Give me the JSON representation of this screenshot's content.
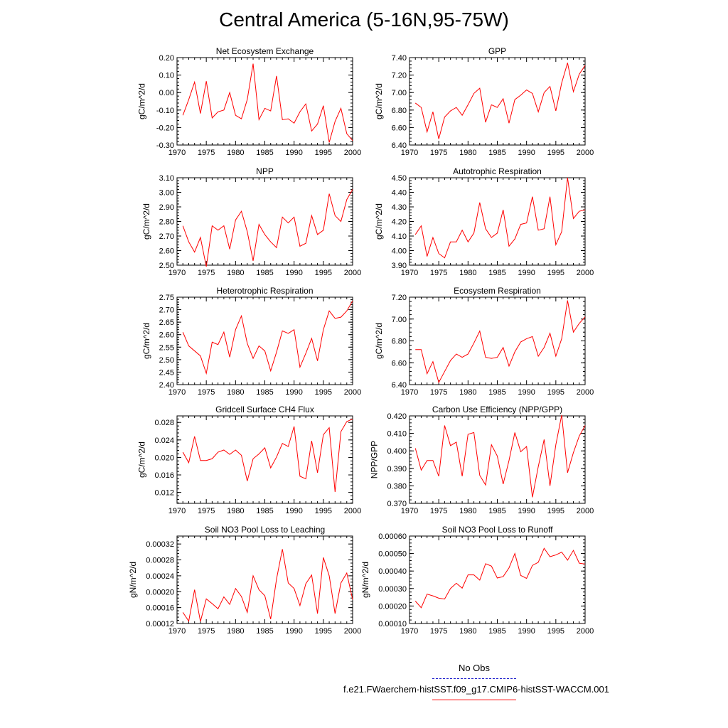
{
  "title": "Central America (5-16N,95-75W)",
  "legend": {
    "obs_label": "No Obs",
    "case_label": "f.e21.FWaerchem-histSST.f09_g17.CMIP6-histSST-WACCM.001",
    "obs_color": "#2222cc",
    "case_color": "#ff0000"
  },
  "chart_data": [
    {
      "type": "line",
      "title": "Net Ecosystem Exchange",
      "ylabel": "gC/m^2/d",
      "xlim": [
        1970,
        2000
      ],
      "ylim": [
        -0.3,
        0.2
      ],
      "xticks": [
        "1970",
        "1975",
        "1980",
        "1985",
        "1990",
        "1995",
        "2000"
      ],
      "yticks": [
        "-0.30",
        "-0.20",
        "-0.10",
        "0.00",
        "0.10",
        "0.20"
      ],
      "x": [
        1971,
        1972,
        1973,
        1974,
        1975,
        1976,
        1977,
        1978,
        1979,
        1980,
        1981,
        1982,
        1983,
        1984,
        1985,
        1986,
        1987,
        1988,
        1989,
        1990,
        1991,
        1992,
        1993,
        1994,
        1995,
        1996,
        1997,
        1998,
        1999,
        2000
      ],
      "series": [
        {
          "values": [
            -0.13,
            -0.04,
            0.06,
            -0.12,
            0.065,
            -0.145,
            -0.11,
            -0.1,
            0.0,
            -0.13,
            -0.15,
            -0.04,
            0.165,
            -0.155,
            -0.09,
            -0.105,
            0.095,
            -0.155,
            -0.15,
            -0.175,
            -0.11,
            -0.065,
            -0.22,
            -0.18,
            -0.075,
            -0.285,
            -0.165,
            -0.09,
            -0.235,
            -0.275
          ]
        }
      ]
    },
    {
      "type": "line",
      "title": "GPP",
      "ylabel": "gC/m^2/d",
      "xlim": [
        1970,
        2000
      ],
      "ylim": [
        6.4,
        7.4
      ],
      "xticks": [
        "1970",
        "1975",
        "1980",
        "1985",
        "1990",
        "1995",
        "2000"
      ],
      "yticks": [
        "6.40",
        "6.60",
        "6.80",
        "7.00",
        "7.20",
        "7.40"
      ],
      "x": [
        1971,
        1972,
        1973,
        1974,
        1975,
        1976,
        1977,
        1978,
        1979,
        1980,
        1981,
        1982,
        1983,
        1984,
        1985,
        1986,
        1987,
        1988,
        1989,
        1990,
        1991,
        1992,
        1993,
        1994,
        1995,
        1996,
        1997,
        1998,
        1999,
        2000
      ],
      "series": [
        {
          "values": [
            6.88,
            6.83,
            6.55,
            6.78,
            6.47,
            6.72,
            6.79,
            6.83,
            6.74,
            6.86,
            6.99,
            7.05,
            6.66,
            6.86,
            6.83,
            6.93,
            6.65,
            6.92,
            6.97,
            7.03,
            6.99,
            6.78,
            7.0,
            7.07,
            6.79,
            7.11,
            7.34,
            7.01,
            7.21,
            7.31
          ]
        }
      ]
    },
    {
      "type": "line",
      "title": "NPP",
      "ylabel": "gC/m^2/d",
      "xlim": [
        1970,
        2000
      ],
      "ylim": [
        2.5,
        3.1
      ],
      "xticks": [
        "1970",
        "1975",
        "1980",
        "1985",
        "1990",
        "1995",
        "2000"
      ],
      "yticks": [
        "2.50",
        "2.60",
        "2.70",
        "2.80",
        "2.90",
        "3.00",
        "3.10"
      ],
      "x": [
        1971,
        1972,
        1973,
        1974,
        1975,
        1976,
        1977,
        1978,
        1979,
        1980,
        1981,
        1982,
        1983,
        1984,
        1985,
        1986,
        1987,
        1988,
        1989,
        1990,
        1991,
        1992,
        1993,
        1994,
        1995,
        1996,
        1997,
        1998,
        1999,
        2000
      ],
      "series": [
        {
          "values": [
            2.77,
            2.66,
            2.59,
            2.69,
            2.49,
            2.77,
            2.74,
            2.77,
            2.61,
            2.81,
            2.87,
            2.73,
            2.53,
            2.78,
            2.71,
            2.66,
            2.62,
            2.83,
            2.79,
            2.83,
            2.63,
            2.65,
            2.84,
            2.71,
            2.74,
            2.99,
            2.84,
            2.8,
            2.95,
            3.02
          ]
        }
      ]
    },
    {
      "type": "line",
      "title": "Autotrophic Respiration",
      "ylabel": "gC/m^2/d",
      "xlim": [
        1970,
        2000
      ],
      "ylim": [
        3.9,
        4.5
      ],
      "xticks": [
        "1970",
        "1975",
        "1980",
        "1985",
        "1990",
        "1995",
        "2000"
      ],
      "yticks": [
        "3.90",
        "4.00",
        "4.10",
        "4.20",
        "4.30",
        "4.40",
        "4.50"
      ],
      "x": [
        1971,
        1972,
        1973,
        1974,
        1975,
        1976,
        1977,
        1978,
        1979,
        1980,
        1981,
        1982,
        1983,
        1984,
        1985,
        1986,
        1987,
        1988,
        1989,
        1990,
        1991,
        1992,
        1993,
        1994,
        1995,
        1996,
        1997,
        1998,
        1999,
        2000
      ],
      "series": [
        {
          "values": [
            4.11,
            4.17,
            3.96,
            4.09,
            3.98,
            3.95,
            4.06,
            4.06,
            4.14,
            4.06,
            4.12,
            4.33,
            4.15,
            4.09,
            4.12,
            4.28,
            4.03,
            4.08,
            4.18,
            4.19,
            4.37,
            4.14,
            4.15,
            4.37,
            4.04,
            4.13,
            4.5,
            4.22,
            4.27,
            4.28
          ]
        }
      ]
    },
    {
      "type": "line",
      "title": "Heterotrophic Respiration",
      "ylabel": "gC/m^2/d",
      "xlim": [
        1970,
        2000
      ],
      "ylim": [
        2.4,
        2.75
      ],
      "xticks": [
        "1970",
        "1975",
        "1980",
        "1985",
        "1990",
        "1995",
        "2000"
      ],
      "yticks": [
        "2.40",
        "2.45",
        "2.50",
        "2.55",
        "2.60",
        "2.65",
        "2.70",
        "2.75"
      ],
      "x": [
        1971,
        1972,
        1973,
        1974,
        1975,
        1976,
        1977,
        1978,
        1979,
        1980,
        1981,
        1982,
        1983,
        1984,
        1985,
        1986,
        1987,
        1988,
        1989,
        1990,
        1991,
        1992,
        1993,
        1994,
        1995,
        1996,
        1997,
        1998,
        1999,
        2000
      ],
      "series": [
        {
          "values": [
            2.61,
            2.555,
            2.535,
            2.515,
            2.445,
            2.57,
            2.56,
            2.61,
            2.51,
            2.62,
            2.675,
            2.565,
            2.505,
            2.555,
            2.535,
            2.455,
            2.53,
            2.615,
            2.605,
            2.62,
            2.47,
            2.525,
            2.585,
            2.495,
            2.62,
            2.695,
            2.665,
            2.67,
            2.695,
            2.735
          ]
        }
      ]
    },
    {
      "type": "line",
      "title": "Ecosystem Respiration",
      "ylabel": "gC/m^2/d",
      "xlim": [
        1970,
        2000
      ],
      "ylim": [
        6.4,
        7.2
      ],
      "xticks": [
        "1970",
        "1975",
        "1980",
        "1985",
        "1990",
        "1995",
        "2000"
      ],
      "yticks": [
        "6.40",
        "6.60",
        "6.80",
        "7.00",
        "7.20"
      ],
      "x": [
        1971,
        1972,
        1973,
        1974,
        1975,
        1976,
        1977,
        1978,
        1979,
        1980,
        1981,
        1982,
        1983,
        1984,
        1985,
        1986,
        1987,
        1988,
        1989,
        1990,
        1991,
        1992,
        1993,
        1994,
        1995,
        1996,
        1997,
        1998,
        1999,
        2000
      ],
      "series": [
        {
          "values": [
            6.72,
            6.72,
            6.5,
            6.61,
            6.42,
            6.52,
            6.62,
            6.68,
            6.65,
            6.68,
            6.78,
            6.89,
            6.65,
            6.64,
            6.65,
            6.74,
            6.57,
            6.7,
            6.79,
            6.82,
            6.84,
            6.66,
            6.74,
            6.87,
            6.66,
            6.82,
            7.17,
            6.88,
            6.96,
            7.02
          ]
        }
      ]
    },
    {
      "type": "line",
      "title": "Gridcell Surface CH4 Flux",
      "ylabel": "gC/m^2/d",
      "xlim": [
        1970,
        2000
      ],
      "ylim": [
        0.0095,
        0.0295
      ],
      "xticks": [
        "1970",
        "1975",
        "1980",
        "1985",
        "1990",
        "1995",
        "2000"
      ],
      "yticks": [
        "0.012",
        "0.016",
        "0.020",
        "0.024",
        "0.028"
      ],
      "ytick_values": [
        0.012,
        0.016,
        0.02,
        0.024,
        0.028
      ],
      "x": [
        1971,
        1972,
        1973,
        1974,
        1975,
        1976,
        1977,
        1978,
        1979,
        1980,
        1981,
        1982,
        1983,
        1984,
        1985,
        1986,
        1987,
        1988,
        1989,
        1990,
        1991,
        1992,
        1993,
        1994,
        1995,
        1996,
        1997,
        1998,
        1999,
        2000
      ],
      "series": [
        {
          "values": [
            0.0212,
            0.0188,
            0.0248,
            0.0193,
            0.0193,
            0.0197,
            0.0212,
            0.0217,
            0.0207,
            0.0217,
            0.0205,
            0.0146,
            0.0197,
            0.0208,
            0.0222,
            0.0176,
            0.0201,
            0.0232,
            0.0225,
            0.0271,
            0.0157,
            0.0151,
            0.0238,
            0.0165,
            0.0252,
            0.0268,
            0.0121,
            0.0259,
            0.0282,
            0.0288
          ]
        }
      ]
    },
    {
      "type": "line",
      "title": "Carbon Use Efficiency (NPP/GPP)",
      "ylabel": "NPP/GPP",
      "xlim": [
        1970,
        2000
      ],
      "ylim": [
        0.37,
        0.42
      ],
      "xticks": [
        "1970",
        "1975",
        "1980",
        "1985",
        "1990",
        "1995",
        "2000"
      ],
      "yticks": [
        "0.370",
        "0.380",
        "0.390",
        "0.400",
        "0.410",
        "0.420"
      ],
      "x": [
        1971,
        1972,
        1973,
        1974,
        1975,
        1976,
        1977,
        1978,
        1979,
        1980,
        1981,
        1982,
        1983,
        1984,
        1985,
        1986,
        1987,
        1988,
        1989,
        1990,
        1991,
        1992,
        1993,
        1994,
        1995,
        1996,
        1997,
        1998,
        1999,
        2000
      ],
      "series": [
        {
          "values": [
            0.4015,
            0.389,
            0.3945,
            0.3945,
            0.3855,
            0.4145,
            0.403,
            0.405,
            0.3855,
            0.4095,
            0.4105,
            0.386,
            0.3805,
            0.4035,
            0.397,
            0.381,
            0.3945,
            0.4105,
            0.3995,
            0.4025,
            0.3735,
            0.391,
            0.4065,
            0.38,
            0.4035,
            0.4205,
            0.3875,
            0.399,
            0.4085,
            0.4145
          ]
        }
      ]
    },
    {
      "type": "line",
      "title": "Soil NO3 Pool Loss to Leaching",
      "ylabel": "gN/m^2/d",
      "xlim": [
        1970,
        2000
      ],
      "ylim": [
        0.00012,
        0.00034
      ],
      "xticks": [
        "1970",
        "1975",
        "1980",
        "1985",
        "1990",
        "1995",
        "2000"
      ],
      "yticks": [
        "0.00012",
        "0.00016",
        "0.00020",
        "0.00024",
        "0.00028",
        "0.00032"
      ],
      "ytick_values": [
        0.00012,
        0.00016,
        0.0002,
        0.00024,
        0.00028,
        0.00032
      ],
      "x": [
        1971,
        1972,
        1973,
        1974,
        1975,
        1976,
        1977,
        1978,
        1979,
        1980,
        1981,
        1982,
        1983,
        1984,
        1985,
        1986,
        1987,
        1988,
        1989,
        1990,
        1991,
        1992,
        1993,
        1994,
        1995,
        1996,
        1997,
        1998,
        1999,
        2000
      ],
      "series": [
        {
          "values": [
            0.000148,
            0.000126,
            0.000205,
            0.000125,
            0.000182,
            0.00017,
            0.000157,
            0.000187,
            0.000168,
            0.000208,
            0.000188,
            0.000148,
            0.00024,
            0.000205,
            0.00019,
            0.000131,
            0.000232,
            0.000307,
            0.000222,
            0.000208,
            0.000165,
            0.00022,
            0.000242,
            0.000145,
            0.000286,
            0.00024,
            0.000145,
            0.000222,
            0.000247,
            0.00018
          ]
        }
      ]
    },
    {
      "type": "line",
      "title": "Soil NO3 Pool Loss to Runoff",
      "ylabel": "gN/m^2/d",
      "xlim": [
        1970,
        2000
      ],
      "ylim": [
        0.0001,
        0.0006
      ],
      "xticks": [
        "1970",
        "1975",
        "1980",
        "1985",
        "1990",
        "1995",
        "2000"
      ],
      "yticks": [
        "0.00010",
        "0.00020",
        "0.00030",
        "0.00040",
        "0.00050",
        "0.00060"
      ],
      "x": [
        1971,
        1972,
        1973,
        1974,
        1975,
        1976,
        1977,
        1978,
        1979,
        1980,
        1981,
        1982,
        1983,
        1984,
        1985,
        1986,
        1987,
        1988,
        1989,
        1990,
        1991,
        1992,
        1993,
        1994,
        1995,
        1996,
        1997,
        1998,
        1999,
        2000
      ],
      "series": [
        {
          "values": [
            0.000228,
            0.00019,
            0.000268,
            0.000258,
            0.000245,
            0.00024,
            0.0003,
            0.00033,
            0.000302,
            0.000378,
            0.000378,
            0.000348,
            0.000442,
            0.000428,
            0.00036,
            0.000368,
            0.000418,
            0.0005,
            0.000375,
            0.000358,
            0.000432,
            0.00045,
            0.00053,
            0.000482,
            0.000492,
            0.000508,
            0.000462,
            0.000518,
            0.000445,
            0.00044
          ]
        }
      ]
    }
  ]
}
